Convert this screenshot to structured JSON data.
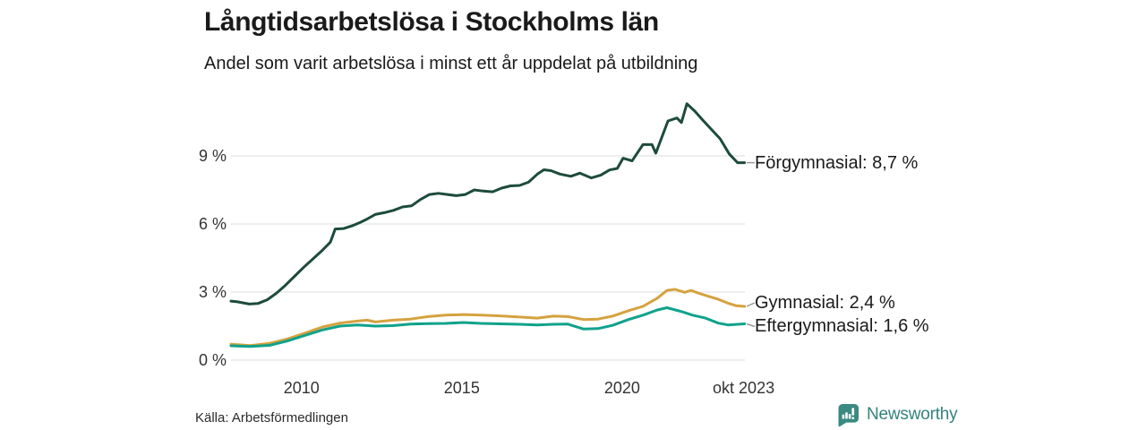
{
  "chart_data": {
    "type": "line",
    "title": "Långtidsarbetslösa i Stockholms län",
    "subtitle": "Andel som varit arbetslösa i minst ett år uppdelat på utbildning",
    "source": "Källa: Arbetsförmedlingen",
    "brand": "Newsworthy",
    "x_domain": [
      2007.8,
      2023.83
    ],
    "ylim": [
      0,
      11.5
    ],
    "grid": true,
    "unit": "%",
    "colors": {
      "grid": "#dcdcdc",
      "tick_text": "#333333",
      "label_text": "#1a1a1a",
      "leader": "#999999",
      "brand": "#33837c",
      "forgymnasial": "#1d4b3c",
      "gymnasial": "#d5a23f",
      "eftergymnasial": "#0fa28b"
    },
    "y_ticks": [
      {
        "value": 9,
        "label": "9 %"
      },
      {
        "value": 6,
        "label": "6 %"
      },
      {
        "value": 3,
        "label": "3 %"
      },
      {
        "value": 0,
        "label": "0 %"
      }
    ],
    "x_ticks": [
      {
        "value": 2010,
        "label": "2010"
      },
      {
        "value": 2015,
        "label": "2015"
      },
      {
        "value": 2020,
        "label": "2020"
      },
      {
        "value": 2023.79,
        "label": "okt 2023"
      }
    ],
    "series": [
      {
        "name": "Förgymnasial",
        "color": "#1d4b3c",
        "last_value_label": "8,7 %",
        "end_label": "Förgymnasial: 8,7 %",
        "points": [
          [
            2007.8,
            2.6
          ],
          [
            2008.0,
            2.57
          ],
          [
            2008.37,
            2.47
          ],
          [
            2008.65,
            2.5
          ],
          [
            2008.93,
            2.66
          ],
          [
            2009.21,
            2.94
          ],
          [
            2009.49,
            3.29
          ],
          [
            2009.78,
            3.69
          ],
          [
            2010.06,
            4.08
          ],
          [
            2010.34,
            4.44
          ],
          [
            2010.62,
            4.8
          ],
          [
            2010.9,
            5.2
          ],
          [
            2011.05,
            5.78
          ],
          [
            2011.32,
            5.8
          ],
          [
            2011.6,
            5.93
          ],
          [
            2011.8,
            6.05
          ],
          [
            2012.02,
            6.2
          ],
          [
            2012.3,
            6.42
          ],
          [
            2012.58,
            6.5
          ],
          [
            2012.87,
            6.6
          ],
          [
            2013.15,
            6.75
          ],
          [
            2013.43,
            6.8
          ],
          [
            2013.71,
            7.08
          ],
          [
            2013.99,
            7.3
          ],
          [
            2014.27,
            7.35
          ],
          [
            2014.55,
            7.3
          ],
          [
            2014.83,
            7.25
          ],
          [
            2015.11,
            7.3
          ],
          [
            2015.39,
            7.5
          ],
          [
            2015.67,
            7.45
          ],
          [
            2015.96,
            7.42
          ],
          [
            2016.24,
            7.58
          ],
          [
            2016.52,
            7.68
          ],
          [
            2016.8,
            7.7
          ],
          [
            2017.08,
            7.84
          ],
          [
            2017.36,
            8.2
          ],
          [
            2017.56,
            8.39
          ],
          [
            2017.78,
            8.35
          ],
          [
            2018.06,
            8.2
          ],
          [
            2018.4,
            8.1
          ],
          [
            2018.68,
            8.24
          ],
          [
            2019.04,
            8.03
          ],
          [
            2019.33,
            8.15
          ],
          [
            2019.61,
            8.38
          ],
          [
            2019.85,
            8.45
          ],
          [
            2020.03,
            8.9
          ],
          [
            2020.31,
            8.78
          ],
          [
            2020.65,
            9.5
          ],
          [
            2020.93,
            9.5
          ],
          [
            2021.05,
            9.12
          ],
          [
            2021.43,
            10.54
          ],
          [
            2021.71,
            10.67
          ],
          [
            2021.85,
            10.47
          ],
          [
            2022.02,
            11.3
          ],
          [
            2022.27,
            10.97
          ],
          [
            2022.5,
            10.6
          ],
          [
            2022.7,
            10.3
          ],
          [
            2023.06,
            9.75
          ],
          [
            2023.34,
            9.09
          ],
          [
            2023.6,
            8.7
          ],
          [
            2023.82,
            8.7
          ]
        ]
      },
      {
        "name": "Gymnasial",
        "color": "#d5a23f",
        "last_value_label": "2,4 %",
        "end_label": "Gymnasial: 2,4 %",
        "points": [
          [
            2007.8,
            0.7
          ],
          [
            2008.4,
            0.64
          ],
          [
            2009.0,
            0.74
          ],
          [
            2009.55,
            0.93
          ],
          [
            2010.1,
            1.19
          ],
          [
            2010.65,
            1.46
          ],
          [
            2011.2,
            1.63
          ],
          [
            2011.75,
            1.72
          ],
          [
            2012.05,
            1.76
          ],
          [
            2012.3,
            1.68
          ],
          [
            2012.85,
            1.76
          ],
          [
            2013.4,
            1.81
          ],
          [
            2013.95,
            1.92
          ],
          [
            2014.5,
            1.98
          ],
          [
            2015.05,
            2.01
          ],
          [
            2015.6,
            1.98
          ],
          [
            2016.2,
            1.95
          ],
          [
            2016.8,
            1.9
          ],
          [
            2017.35,
            1.85
          ],
          [
            2017.85,
            1.94
          ],
          [
            2018.3,
            1.92
          ],
          [
            2018.8,
            1.79
          ],
          [
            2019.25,
            1.81
          ],
          [
            2019.7,
            1.94
          ],
          [
            2020.2,
            2.18
          ],
          [
            2020.65,
            2.37
          ],
          [
            2021.1,
            2.73
          ],
          [
            2021.4,
            3.07
          ],
          [
            2021.65,
            3.12
          ],
          [
            2021.95,
            2.99
          ],
          [
            2022.15,
            3.07
          ],
          [
            2022.4,
            2.94
          ],
          [
            2022.7,
            2.81
          ],
          [
            2023.0,
            2.68
          ],
          [
            2023.3,
            2.51
          ],
          [
            2023.55,
            2.4
          ],
          [
            2023.82,
            2.37
          ]
        ]
      },
      {
        "name": "Eftergymnasial",
        "color": "#0fa28b",
        "last_value_label": "1,6 %",
        "end_label": "Eftergymnasial: 1,6 %",
        "points": [
          [
            2007.8,
            0.63
          ],
          [
            2008.4,
            0.6
          ],
          [
            2009.0,
            0.65
          ],
          [
            2009.55,
            0.84
          ],
          [
            2010.1,
            1.09
          ],
          [
            2010.65,
            1.33
          ],
          [
            2011.2,
            1.5
          ],
          [
            2011.75,
            1.55
          ],
          [
            2012.3,
            1.5
          ],
          [
            2012.85,
            1.52
          ],
          [
            2013.4,
            1.59
          ],
          [
            2013.95,
            1.61
          ],
          [
            2014.5,
            1.62
          ],
          [
            2015.05,
            1.66
          ],
          [
            2015.6,
            1.62
          ],
          [
            2016.2,
            1.6
          ],
          [
            2016.8,
            1.58
          ],
          [
            2017.35,
            1.55
          ],
          [
            2017.85,
            1.58
          ],
          [
            2018.3,
            1.59
          ],
          [
            2018.8,
            1.37
          ],
          [
            2019.25,
            1.39
          ],
          [
            2019.7,
            1.53
          ],
          [
            2020.2,
            1.79
          ],
          [
            2020.65,
            1.98
          ],
          [
            2021.1,
            2.21
          ],
          [
            2021.4,
            2.31
          ],
          [
            2021.9,
            2.12
          ],
          [
            2022.2,
            1.98
          ],
          [
            2022.6,
            1.85
          ],
          [
            2023.0,
            1.63
          ],
          [
            2023.3,
            1.55
          ],
          [
            2023.82,
            1.6
          ]
        ]
      }
    ]
  }
}
